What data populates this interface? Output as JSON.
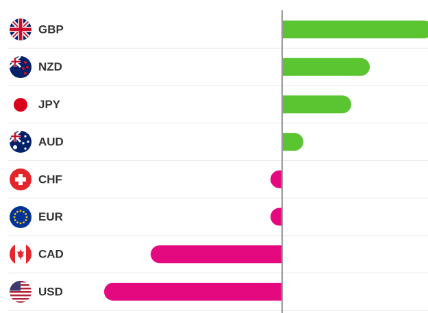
{
  "chart_data": {
    "type": "bar",
    "orientation": "horizontal",
    "categories": [
      "GBP",
      "NZD",
      "JPY",
      "AUD",
      "CHF",
      "EUR",
      "CAD",
      "USD"
    ],
    "values": [
      2.2,
      1.28,
      1.01,
      0.31,
      -0.17,
      -0.17,
      -1.92,
      -2.6
    ],
    "positive_color": "#5ac531",
    "negative_color": "#e5097f",
    "xlim": [
      -2.7,
      2.13
    ]
  }
}
